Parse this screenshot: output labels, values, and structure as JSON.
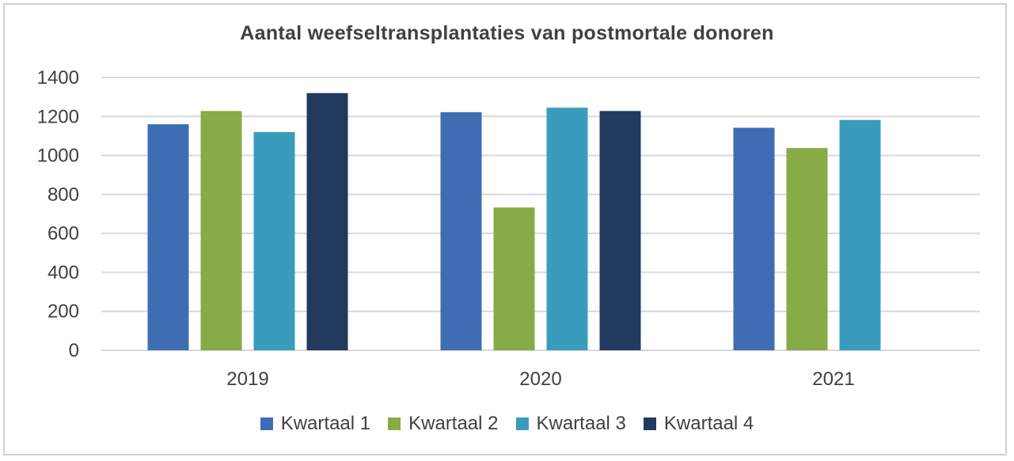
{
  "chart_data": {
    "type": "bar",
    "title": "Aantal weefseltransplantaties van postmortale donoren",
    "categories": [
      "2019",
      "2020",
      "2021"
    ],
    "series": [
      {
        "name": "Kwartaal 1",
        "color": "#3f6db3",
        "values": [
          1160,
          1222,
          1142
        ]
      },
      {
        "name": "Kwartaal 2",
        "color": "#86ab47",
        "values": [
          1228,
          733,
          1038
        ]
      },
      {
        "name": "Kwartaal 3",
        "color": "#3a9cbd",
        "values": [
          1120,
          1245,
          1182
        ]
      },
      {
        "name": "Kwartaal 4",
        "color": "#223a5e",
        "values": [
          1320,
          1228,
          null
        ]
      }
    ],
    "ylim": [
      0,
      1400
    ],
    "yticks": [
      "0",
      "200",
      "400",
      "600",
      "800",
      "1000",
      "1200",
      "1400"
    ],
    "xlabel": "",
    "ylabel": "",
    "grid": true,
    "legend": "bottom"
  }
}
